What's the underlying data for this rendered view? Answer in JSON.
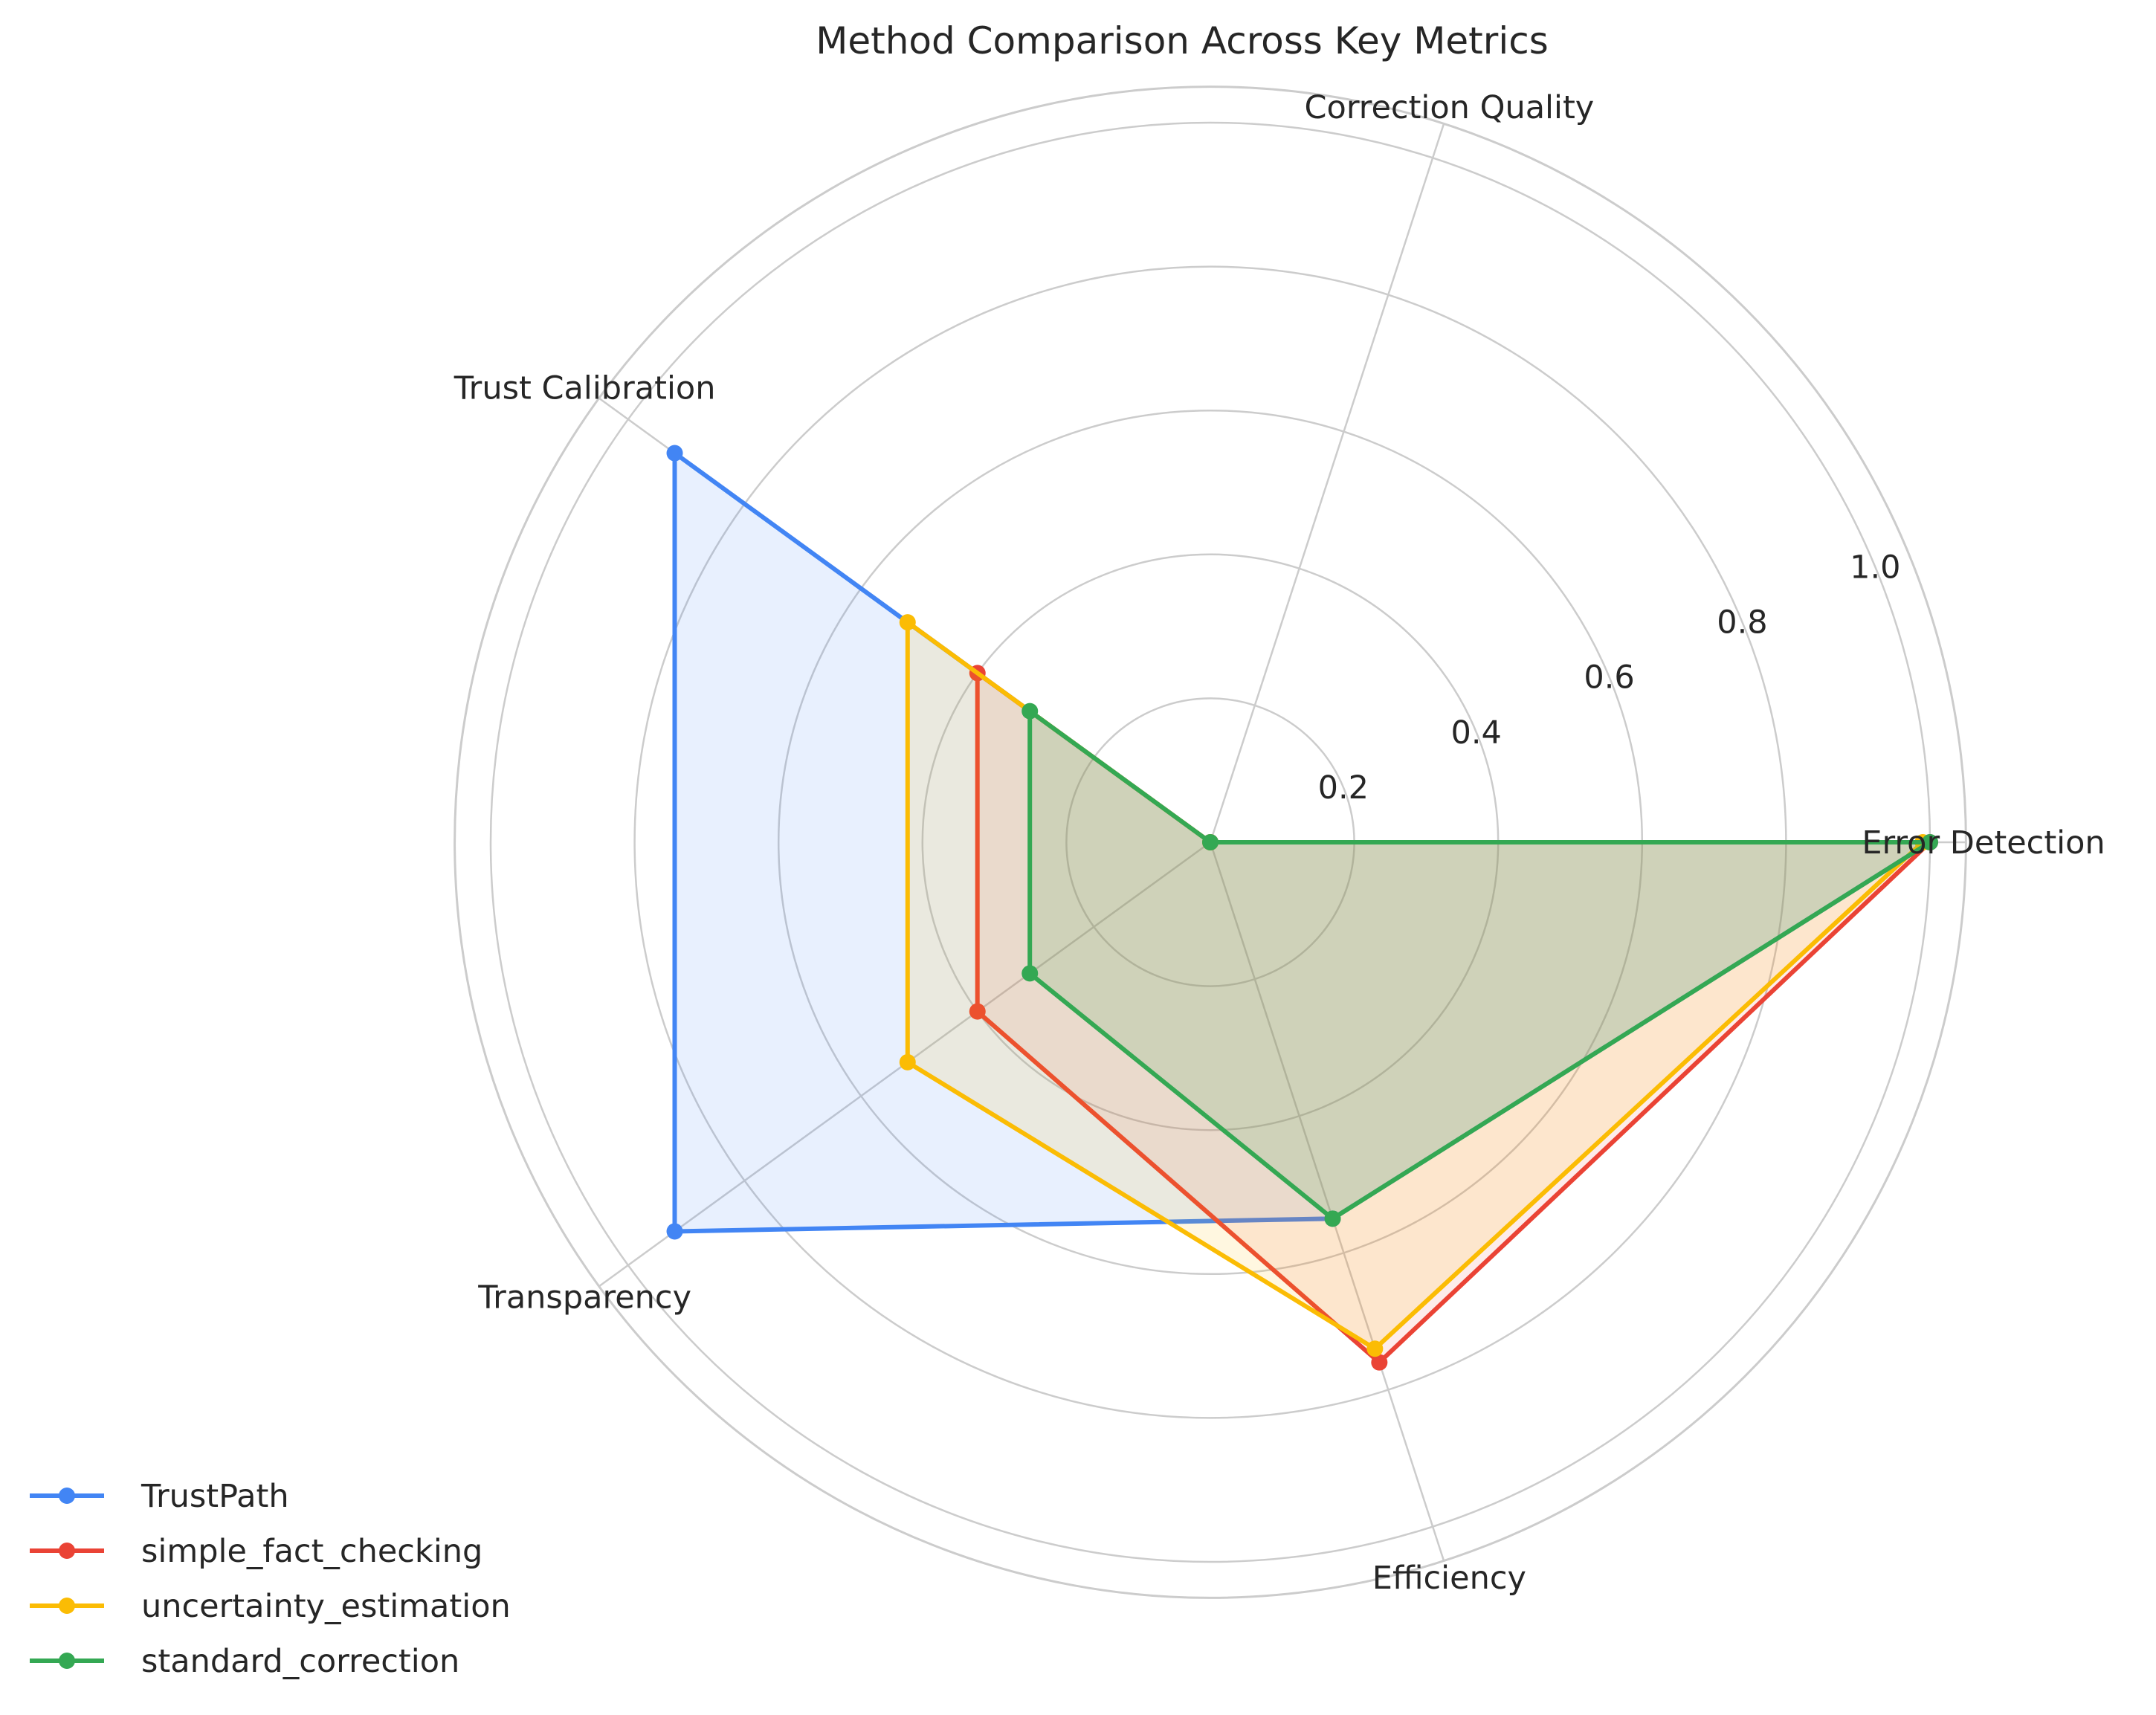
{
  "chart_data": {
    "type": "radar",
    "title": "Method Comparison Across Key Metrics",
    "axes": [
      "Error Detection",
      "Correction Quality",
      "Trust Calibration",
      "Transparency",
      "Efficiency"
    ],
    "rlim": [
      0,
      1.05
    ],
    "ticks": [
      0.2,
      0.4,
      0.6,
      0.8,
      1.0
    ],
    "tick_labels": [
      "0.2",
      "0.4",
      "0.6",
      "0.8",
      "1.0"
    ],
    "grid": true,
    "legend_position": "lower-left",
    "series": [
      {
        "name": "TrustPath",
        "color": "#4285f4",
        "fill_opacity": 0.12,
        "values": [
          1.0,
          0.0,
          0.92,
          0.92,
          0.55
        ]
      },
      {
        "name": "simple_fact_checking",
        "color": "#ea4335",
        "fill_opacity": 0.1,
        "values": [
          1.0,
          0.0,
          0.4,
          0.4,
          0.76
        ]
      },
      {
        "name": "uncertainty_estimation",
        "color": "#fbbc04",
        "fill_opacity": 0.12,
        "values": [
          0.99,
          0.0,
          0.52,
          0.52,
          0.74
        ]
      },
      {
        "name": "standard_correction",
        "color": "#34a853",
        "fill_opacity": 0.15,
        "values": [
          1.0,
          0.0,
          0.31,
          0.31,
          0.55
        ]
      }
    ]
  }
}
